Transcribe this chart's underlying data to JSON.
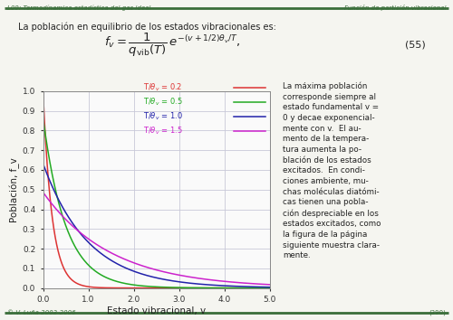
{
  "title_header": "L09: Termodínamica estadística del gas ideal",
  "title_right": "Función de partición vibracional",
  "xlabel": "Estado vibracional, v",
  "ylabel": "Población, f_v",
  "xlim": [
    0.0,
    5.0
  ],
  "ylim": [
    0.0,
    1.0
  ],
  "xticks": [
    0.0,
    1.0,
    2.0,
    3.0,
    4.0,
    5.0
  ],
  "yticks": [
    0.0,
    0.1,
    0.2,
    0.3,
    0.4,
    0.5,
    0.6,
    0.7,
    0.8,
    0.9,
    1.0
  ],
  "series": [
    {
      "T_ratio": 0.2,
      "color": "#dd3333",
      "label": "T/θv = 0.2"
    },
    {
      "T_ratio": 0.5,
      "color": "#22aa22",
      "label": "T/θv = 0.5"
    },
    {
      "T_ratio": 1.0,
      "color": "#2222aa",
      "label": "T/θv = 1.0"
    },
    {
      "T_ratio": 1.5,
      "color": "#cc22cc",
      "label": "T/θv = 1.5"
    }
  ],
  "grid_color": "#c8c8d8",
  "background_color": "#f5f5f0",
  "plot_bg_color": "#fafafa",
  "header_color": "#3a6e3a",
  "footer_color": "#3a6e3a",
  "page_number": "(290)",
  "footer_text": "© V. Luña 2003-2006",
  "intro_text": "La población en equilibrio de los estados vibracionales es:",
  "right_text": "La máxima población\ncorresponde siempre al\nestado fundamental v =\n0 y decae exponencial-\nmente con v.  El au-\nmento de la tempera-\ntura aumenta la po-\nblación de los estados\nexcitados.  En condi-\nciones ambiente, mu-\nchas moléculas diatómi-\ncas tienen una pobla-\nción despreciable en los\nestados excitados, como\nla figura de la página\nsiguiente muestra clara-\nmente."
}
